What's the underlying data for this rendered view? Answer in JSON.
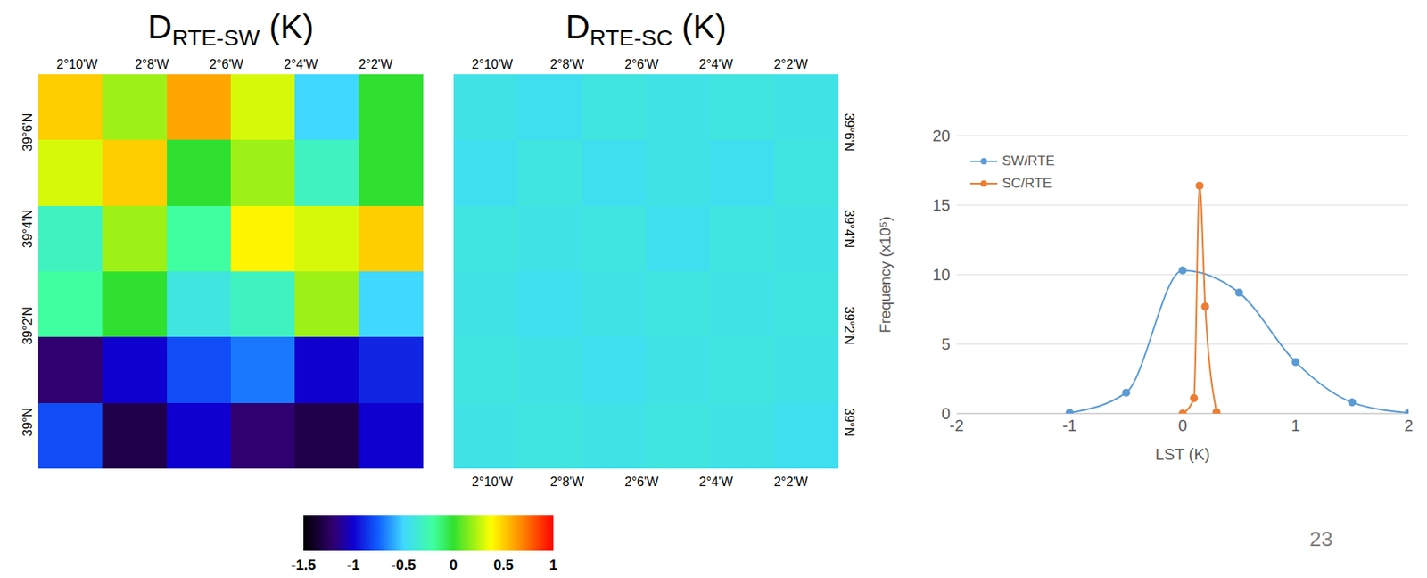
{
  "maps": [
    {
      "title": {
        "main": "D",
        "sub": "RTE-SW",
        "unit": "(K)"
      },
      "lon_range": [
        -2.184,
        -2.012
      ],
      "lat_range": [
        38.984,
        39.12
      ],
      "lon_ticks": [
        {
          "value": -2.1667,
          "label": "2°10'W"
        },
        {
          "value": -2.1333,
          "label": "2°8'W"
        },
        {
          "value": -2.1,
          "label": "2°6'W"
        },
        {
          "value": -2.0667,
          "label": "2°4'W"
        },
        {
          "value": -2.0333,
          "label": "2°2'W"
        }
      ],
      "lat_ticks": [
        {
          "value": 39.0,
          "label": "39°N"
        },
        {
          "value": 39.0333,
          "label": "39°2'N"
        },
        {
          "value": 39.0667,
          "label": "39°4'N"
        },
        {
          "value": 39.1,
          "label": "39°6'N"
        }
      ],
      "cells": [
        [
          0.5,
          0.2,
          0.6,
          0.3,
          -0.5,
          0.0
        ],
        [
          0.3,
          0.5,
          0.0,
          0.2,
          -0.3,
          0.0
        ],
        [
          -0.3,
          0.2,
          -0.2,
          0.4,
          0.3,
          0.5
        ],
        [
          -0.2,
          0.0,
          -0.4,
          -0.3,
          0.2,
          -0.5
        ],
        [
          -1.2,
          -1.0,
          -0.8,
          -0.7,
          -1.0,
          -0.9
        ],
        [
          -0.8,
          -1.3,
          -1.0,
          -1.2,
          -1.3,
          -1.0
        ]
      ]
    },
    {
      "title": {
        "main": "D",
        "sub": "RTE-SC",
        "unit": "(K)"
      },
      "lon_range": [
        -2.184,
        -2.012
      ],
      "lat_range": [
        38.984,
        39.12
      ],
      "lon_ticks": [
        {
          "value": -2.1667,
          "label": "2°10'W"
        },
        {
          "value": -2.1333,
          "label": "2°8'W"
        },
        {
          "value": -2.1,
          "label": "2°6'W"
        },
        {
          "value": -2.0667,
          "label": "2°4'W"
        },
        {
          "value": -2.0333,
          "label": "2°2'W"
        }
      ],
      "lat_ticks": [
        {
          "value": 39.0,
          "label": "39°N"
        },
        {
          "value": 39.0333,
          "label": "39°2'N"
        },
        {
          "value": 39.0667,
          "label": "39°4'N"
        },
        {
          "value": 39.1,
          "label": "39°6'N"
        }
      ],
      "cells": [
        [
          -0.42,
          -0.45,
          -0.4,
          -0.42,
          -0.4,
          -0.42
        ],
        [
          -0.45,
          -0.4,
          -0.45,
          -0.42,
          -0.45,
          -0.4
        ],
        [
          -0.4,
          -0.42,
          -0.4,
          -0.45,
          -0.4,
          -0.42
        ],
        [
          -0.42,
          -0.45,
          -0.42,
          -0.4,
          -0.42,
          -0.4
        ],
        [
          -0.4,
          -0.42,
          -0.45,
          -0.42,
          -0.4,
          -0.42
        ],
        [
          -0.42,
          -0.4,
          -0.42,
          -0.4,
          -0.42,
          -0.45
        ]
      ]
    }
  ],
  "colorbar": {
    "range": [
      -1.5,
      1
    ],
    "ticks": [
      -1.5,
      -1,
      -0.5,
      0,
      0.5,
      1
    ]
  },
  "chart_data": {
    "type": "line",
    "series": [
      {
        "name": "SW/RTE",
        "color": "#5b9bd5",
        "marker": "circle",
        "x": [
          -1,
          -0.5,
          0,
          0.5,
          1,
          1.5,
          2
        ],
        "values": [
          0.05,
          1.5,
          10.3,
          8.7,
          3.7,
          0.8,
          0.05
        ]
      },
      {
        "name": "SC/RTE",
        "color": "#ed7d31",
        "marker": "circle",
        "x": [
          0,
          0.1,
          0.15,
          0.2,
          0.3
        ],
        "values": [
          0,
          1.1,
          16.4,
          7.7,
          0.1
        ]
      }
    ],
    "x_label": "LST (K)",
    "y_label": "Frequency (x10⁵)",
    "xlim": [
      -2,
      2
    ],
    "xticks": [
      -2,
      -1,
      0,
      1,
      2
    ],
    "ylim": [
      0,
      20
    ],
    "yticks": [
      0,
      5,
      10,
      15,
      20
    ],
    "grid": true,
    "legend": "upper left"
  },
  "page_number": "23"
}
